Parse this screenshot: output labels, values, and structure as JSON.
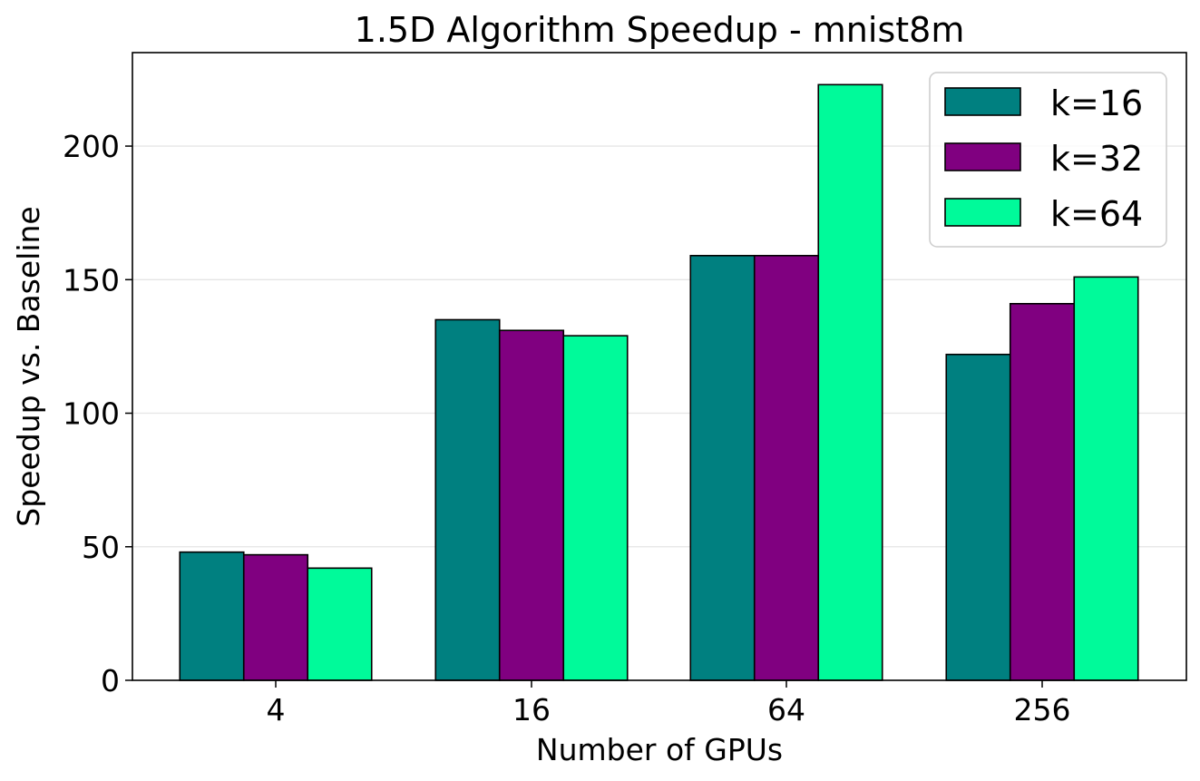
{
  "chart_data": {
    "type": "bar",
    "title": "1.5D Algorithm Speedup - mnist8m",
    "xlabel": "Number of GPUs",
    "ylabel": "Speedup vs. Baseline",
    "categories": [
      "4",
      "16",
      "64",
      "256"
    ],
    "series": [
      {
        "name": "k=16",
        "color": "#008080",
        "values": [
          48,
          135,
          159,
          122
        ]
      },
      {
        "name": "k=32",
        "color": "#800080",
        "values": [
          47,
          131,
          159,
          141
        ]
      },
      {
        "name": "k=64",
        "color": "#00FA9A",
        "values": [
          42,
          129,
          223,
          151
        ]
      }
    ],
    "ylim": [
      0,
      235
    ],
    "yticks": [
      0,
      50,
      100,
      150,
      200
    ],
    "grid": "horizontal",
    "legend_position": "top-right"
  }
}
